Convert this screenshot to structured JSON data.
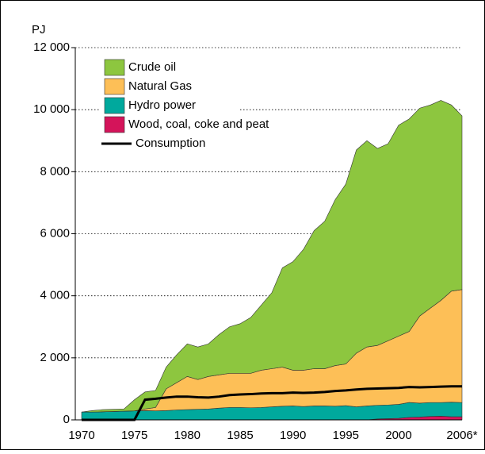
{
  "chart_data": {
    "type": "stacked_area",
    "y_label": "PJ",
    "x": [
      1970,
      1971,
      1972,
      1973,
      1974,
      1975,
      1976,
      1977,
      1978,
      1979,
      1980,
      1981,
      1982,
      1983,
      1984,
      1985,
      1986,
      1987,
      1988,
      1989,
      1990,
      1991,
      1992,
      1993,
      1994,
      1995,
      1996,
      1997,
      1998,
      1999,
      2000,
      2001,
      2002,
      2003,
      2004,
      2005,
      2006
    ],
    "xlim": [
      1970,
      2006
    ],
    "xticks": [
      1970,
      1975,
      1980,
      1985,
      1990,
      1995,
      2000,
      {
        "value": 2006,
        "label": "2006*"
      }
    ],
    "ylim": [
      0,
      12000
    ],
    "yticks": [
      0,
      {
        "value": 2000,
        "label": "2 000"
      },
      {
        "value": 4000,
        "label": "4 000"
      },
      {
        "value": 6000,
        "label": "6 000"
      },
      {
        "value": 8000,
        "label": "8 000"
      },
      {
        "value": 10000,
        "label": "10 000"
      },
      {
        "value": 12000,
        "label": "12 000"
      }
    ],
    "grid": true,
    "legend": "top-left",
    "series": [
      {
        "name": "Crude oil",
        "color": "#8dc63f",
        "values": [
          0,
          50,
          70,
          70,
          70,
          360,
          550,
          550,
          700,
          900,
          1050,
          1050,
          1050,
          1300,
          1500,
          1600,
          1800,
          2100,
          2450,
          3200,
          3500,
          3900,
          4450,
          4750,
          5350,
          5800,
          6550,
          6650,
          6350,
          6350,
          6800,
          6850,
          6700,
          6550,
          6450,
          6000,
          5600
        ]
      },
      {
        "name": "Natural Gas",
        "color": "#fdbf57",
        "values": [
          0,
          0,
          0,
          0,
          0,
          0,
          50,
          110,
          700,
          880,
          1070,
          960,
          1050,
          1070,
          1100,
          1100,
          1110,
          1200,
          1230,
          1260,
          1150,
          1170,
          1200,
          1200,
          1310,
          1340,
          1730,
          1900,
          1930,
          2070,
          2200,
          2290,
          2810,
          3040,
          3290,
          3580,
          3640
        ]
      },
      {
        "name": "Hydro power",
        "color": "#00a99d",
        "values": [
          250,
          250,
          260,
          270,
          280,
          290,
          300,
          290,
          300,
          320,
          330,
          340,
          350,
          380,
          400,
          400,
          390,
          400,
          420,
          440,
          450,
          430,
          450,
          450,
          440,
          460,
          420,
          450,
          440,
          440,
          450,
          480,
          450,
          450,
          440,
          470,
          460
        ]
      },
      {
        "name": "Wood, coal, coke and peat",
        "color": "#d4145a",
        "values": [
          0,
          0,
          0,
          0,
          0,
          0,
          0,
          0,
          0,
          0,
          0,
          0,
          0,
          0,
          0,
          0,
          0,
          0,
          0,
          0,
          0,
          0,
          0,
          0,
          0,
          0,
          0,
          0,
          30,
          40,
          50,
          80,
          90,
          110,
          120,
          100,
          100
        ]
      },
      {
        "name": "Consumption",
        "color": "#000000",
        "type": "line",
        "values": [
          0,
          0,
          0,
          0,
          0,
          0,
          650,
          680,
          720,
          750,
          750,
          730,
          720,
          750,
          800,
          820,
          830,
          850,
          860,
          860,
          880,
          870,
          880,
          900,
          930,
          950,
          980,
          1000,
          1010,
          1020,
          1030,
          1060,
          1050,
          1060,
          1070,
          1080,
          1080
        ]
      }
    ]
  }
}
